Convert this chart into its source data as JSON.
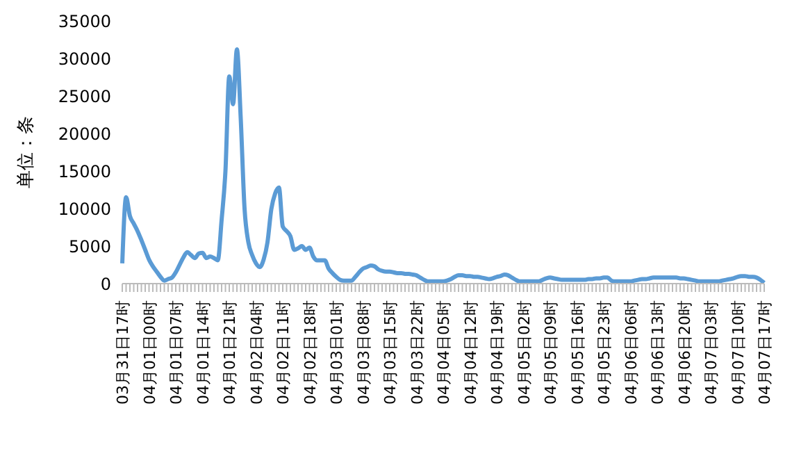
{
  "chart_data": {
    "type": "line",
    "ylabel": "单位：条",
    "color": "#5b9bd5",
    "categories": [
      "03月31日17时",
      null,
      null,
      null,
      null,
      null,
      null,
      "04月01日00时",
      null,
      null,
      null,
      null,
      null,
      null,
      "04月01日07时",
      null,
      null,
      null,
      null,
      null,
      null,
      "04月01日14时",
      null,
      null,
      null,
      null,
      null,
      null,
      "04月01日21时",
      null,
      null,
      null,
      null,
      null,
      null,
      "04月02日04时",
      null,
      null,
      null,
      null,
      null,
      null,
      "04月02日11时",
      null,
      null,
      null,
      null,
      null,
      null,
      "04月02日18时",
      null,
      null,
      null,
      null,
      null,
      null,
      "04月03日01时",
      null,
      null,
      null,
      null,
      null,
      null,
      "04月03日08时",
      null,
      null,
      null,
      null,
      null,
      null,
      "04月03日15时",
      null,
      null,
      null,
      null,
      null,
      null,
      "04月03日22时",
      null,
      null,
      null,
      null,
      null,
      null,
      "04月04日05时",
      null,
      null,
      null,
      null,
      null,
      null,
      "04月04日12时",
      null,
      null,
      null,
      null,
      null,
      null,
      "04月04日19时",
      null,
      null,
      null,
      null,
      null,
      null,
      "04月05日02时",
      null,
      null,
      null,
      null,
      null,
      null,
      "04月05日09时",
      null,
      null,
      null,
      null,
      null,
      null,
      "04月05日16时",
      null,
      null,
      null,
      null,
      null,
      null,
      "04月05日23时",
      null,
      null,
      null,
      null,
      null,
      null,
      "04月06日06时",
      null,
      null,
      null,
      null,
      null,
      null,
      "04月06日13时",
      null,
      null,
      null,
      null,
      null,
      null,
      "04月06日20时",
      null,
      null,
      null,
      null,
      null,
      null,
      "04月07日03时",
      null,
      null,
      null,
      null,
      null,
      null,
      "04月07日10时",
      null,
      null,
      null,
      null,
      null,
      null,
      "04月07日17时"
    ],
    "values": [
      2700,
      11500,
      9000,
      8000,
      7000,
      5800,
      4500,
      3200,
      2300,
      1600,
      900,
      400,
      600,
      800,
      1500,
      2500,
      3500,
      4200,
      3800,
      3400,
      4000,
      4100,
      3400,
      3600,
      3400,
      3100,
      8500,
      15000,
      27600,
      23900,
      31200,
      22000,
      10000,
      5500,
      3800,
      2700,
      2200,
      3200,
      5500,
      9900,
      12000,
      12800,
      7600,
      7000,
      6300,
      4500,
      4700,
      5000,
      4500,
      4800,
      3600,
      3100,
      3100,
      3100,
      2000,
      1400,
      900,
      500,
      400,
      400,
      400,
      900,
      1500,
      2000,
      2200,
      2400,
      2300,
      1900,
      1700,
      1600,
      1600,
      1500,
      1400,
      1400,
      1300,
      1300,
      1200,
      1100,
      800,
      500,
      300,
      300,
      300,
      300,
      300,
      400,
      600,
      900,
      1100,
      1100,
      1000,
      1000,
      900,
      900,
      800,
      700,
      600,
      700,
      900,
      1000,
      1200,
      1100,
      800,
      500,
      300,
      300,
      300,
      300,
      300,
      300,
      500,
      700,
      800,
      700,
      600,
      500,
      500,
      500,
      500,
      500,
      500,
      500,
      600,
      600,
      700,
      700,
      800,
      800,
      400,
      300,
      300,
      300,
      300,
      300,
      400,
      500,
      600,
      600,
      700,
      800,
      800,
      800,
      800,
      800,
      800,
      800,
      700,
      700,
      600,
      500,
      400,
      300,
      300,
      300,
      300,
      300,
      300,
      400,
      500,
      600,
      700,
      900,
      1000,
      1000,
      900,
      900,
      800,
      500,
      100
    ],
    "ylim": [
      0,
      35000
    ],
    "yticks": [
      0,
      5000,
      10000,
      15000,
      20000,
      25000,
      30000,
      35000
    ],
    "grid": false
  }
}
